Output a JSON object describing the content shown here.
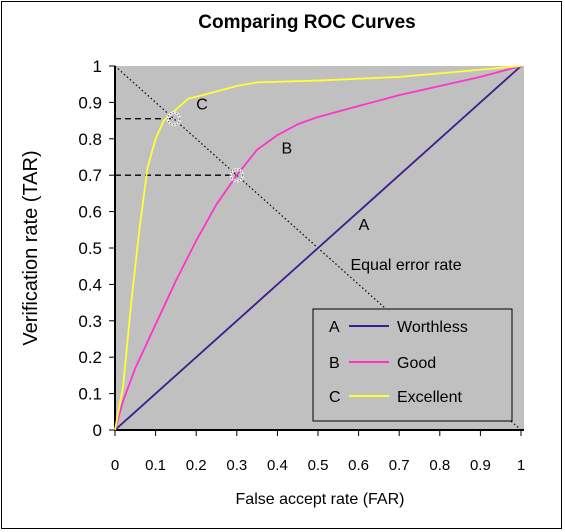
{
  "chart_data": {
    "type": "line",
    "title": "Comparing ROC Curves",
    "xlabel": "False accept rate (FAR)",
    "ylabel": "Verification rate (TAR)",
    "xlim": [
      0,
      1
    ],
    "ylim": [
      0,
      1
    ],
    "x_ticks": [
      "0",
      "0.1",
      "0.2",
      "0.3",
      "0.4",
      "0.5",
      "0.6",
      "0.7",
      "0.8",
      "0.9",
      "1"
    ],
    "y_ticks": [
      "0",
      "0.1",
      "0.2",
      "0.3",
      "0.4",
      "0.5",
      "0.6",
      "0.7",
      "0.8",
      "0.9",
      "1"
    ],
    "plot_background": "#c0c0c0",
    "legend_position": "bottom-right",
    "series": [
      {
        "name": "Worthless",
        "letter": "A",
        "color": "#3d1f8c",
        "x": [
          0,
          1
        ],
        "y": [
          0,
          1
        ]
      },
      {
        "name": "Good",
        "letter": "B",
        "color": "#ff33cc",
        "x": [
          0,
          0.02,
          0.05,
          0.1,
          0.15,
          0.2,
          0.25,
          0.3,
          0.35,
          0.4,
          0.45,
          0.5,
          0.6,
          0.7,
          0.8,
          0.9,
          1.0
        ],
        "y": [
          0,
          0.08,
          0.17,
          0.29,
          0.41,
          0.52,
          0.62,
          0.7,
          0.77,
          0.81,
          0.84,
          0.86,
          0.89,
          0.92,
          0.945,
          0.97,
          1.0
        ]
      },
      {
        "name": "Excellent",
        "letter": "C",
        "color": "#ffff33",
        "x": [
          0,
          0.02,
          0.04,
          0.06,
          0.08,
          0.1,
          0.12,
          0.14,
          0.18,
          0.25,
          0.3,
          0.35,
          0.5,
          0.7,
          0.85,
          1.0
        ],
        "y": [
          0,
          0.12,
          0.35,
          0.55,
          0.72,
          0.8,
          0.85,
          0.87,
          0.91,
          0.93,
          0.945,
          0.955,
          0.96,
          0.97,
          0.985,
          1.0
        ]
      }
    ],
    "eer_line": {
      "x": [
        0,
        1
      ],
      "y": [
        1,
        0
      ]
    },
    "markers": [
      {
        "x": 0.145,
        "y": 0.855
      },
      {
        "x": 0.3,
        "y": 0.7
      }
    ],
    "annotations": [
      {
        "text": "C",
        "x": 0.2,
        "y": 0.88
      },
      {
        "text": "B",
        "x": 0.41,
        "y": 0.76
      },
      {
        "text": "A",
        "x": 0.6,
        "y": 0.55
      },
      {
        "text": "Equal error rate",
        "x": 0.58,
        "y": 0.44
      }
    ]
  }
}
